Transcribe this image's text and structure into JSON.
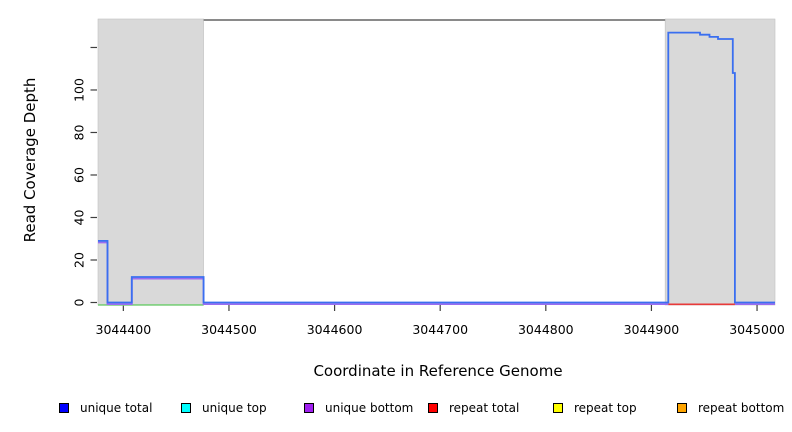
{
  "figure": {
    "background": "#ffffff"
  },
  "legend": {
    "items": [
      {
        "label": "unique total",
        "color": "#0000ff"
      },
      {
        "label": "unique top",
        "color": "#00ffff"
      },
      {
        "label": "unique bottom",
        "color": "#a020f0"
      },
      {
        "label": "repeat total",
        "color": "#ff0000"
      },
      {
        "label": "repeat top",
        "color": "#ffff00"
      },
      {
        "label": "repeat bottom",
        "color": "#ffa500"
      }
    ]
  },
  "chart_data": {
    "type": "line",
    "title": "",
    "xlabel": "Coordinate in Reference Genome",
    "ylabel": "Read Coverage Depth",
    "xlim": [
      3044376,
      3045017
    ],
    "ylim": [
      0,
      133.4
    ],
    "grid": false,
    "legend_position": "bottom",
    "x_ticks": [
      3044400,
      3044500,
      3044600,
      3044700,
      3044800,
      3044900,
      3045000
    ],
    "y_ticks": [
      {
        "value": 0,
        "label": "0"
      },
      {
        "value": 20,
        "label": "20"
      },
      {
        "value": 40,
        "label": "40"
      },
      {
        "value": 60,
        "label": "60"
      },
      {
        "value": 80,
        "label": "80"
      },
      {
        "value": 100,
        "label": "100"
      },
      {
        "value": 120,
        "label": ""
      }
    ],
    "shaded_color": "#d9d9d9",
    "shaded_border": "#c2c2c2",
    "shaded_regions": [
      {
        "name": "masked-region-left",
        "x0": 3044376,
        "x1": 3044476
      },
      {
        "name": "masked-region-right",
        "x0": 3044913,
        "x1": 3045017
      }
    ],
    "top_boundary": {
      "x0": 3044476,
      "x1": 3044913,
      "color": "#8a8a8a"
    },
    "tick_color": "#3f3f3f",
    "series": [
      {
        "name": "unique total",
        "color": "#0000ff",
        "points": [
          [
            3044376,
            29
          ],
          [
            3044385,
            0
          ],
          [
            3044408,
            12
          ],
          [
            3044476,
            0
          ],
          [
            3044916,
            127
          ],
          [
            3044946,
            126
          ],
          [
            3044955,
            125
          ],
          [
            3044963,
            124
          ],
          [
            3044977,
            108
          ],
          [
            3044979,
            0
          ],
          [
            3045017,
            0
          ]
        ]
      },
      {
        "name": "unique top",
        "color": "#00ffff",
        "points": [
          [
            3044376,
            0
          ],
          [
            3045017,
            0
          ]
        ]
      },
      {
        "name": "unique bottom",
        "color": "#a020f0",
        "points": [
          [
            3044376,
            29
          ],
          [
            3044385,
            0
          ],
          [
            3044408,
            12
          ],
          [
            3044476,
            0
          ],
          [
            3045017,
            0
          ]
        ]
      },
      {
        "name": "repeat total",
        "color": "#ff0000",
        "points": [
          [
            3044376,
            0
          ],
          [
            3045017,
            0
          ]
        ]
      },
      {
        "name": "repeat top",
        "color": "#ffff00",
        "points": [
          [
            3044376,
            0
          ],
          [
            3045017,
            0
          ]
        ]
      },
      {
        "name": "repeat bottom",
        "color": "#ffa500",
        "points": [
          [
            3044376,
            0
          ],
          [
            3045017,
            0
          ]
        ]
      }
    ],
    "render_layers": [
      {
        "name": "baseline-green-blend",
        "color": "#7ccf7c",
        "width": 1.6,
        "dy": 2.4,
        "points": [
          [
            3044376,
            0
          ],
          [
            3044476,
            0
          ]
        ]
      },
      {
        "name": "unique-bottom-line",
        "color": "#9a6cf0",
        "width": 1.8,
        "dy": 1.6,
        "points": [
          [
            3044376,
            29
          ],
          [
            3044385,
            0
          ],
          [
            3044408,
            12
          ],
          [
            3044476,
            0
          ],
          [
            3044916,
            0
          ],
          null,
          [
            3044979,
            0
          ],
          [
            3045017,
            0
          ]
        ]
      },
      {
        "name": "repeat-total-line",
        "color": "#e83a3a",
        "width": 1.6,
        "dy": 1.8,
        "points": [
          [
            3044916,
            0
          ],
          [
            3044979,
            0
          ]
        ]
      },
      {
        "name": "unique-total-line",
        "color": "#3a6ff0",
        "width": 1.8,
        "dy": 0,
        "points": [
          [
            3044376,
            29
          ],
          [
            3044385,
            0
          ],
          [
            3044408,
            12
          ],
          [
            3044476,
            0
          ],
          [
            3044916,
            127
          ],
          [
            3044946,
            126
          ],
          [
            3044955,
            125
          ],
          [
            3044963,
            124
          ],
          [
            3044977,
            108
          ],
          [
            3044979,
            0
          ],
          [
            3045017,
            0
          ]
        ]
      }
    ]
  }
}
